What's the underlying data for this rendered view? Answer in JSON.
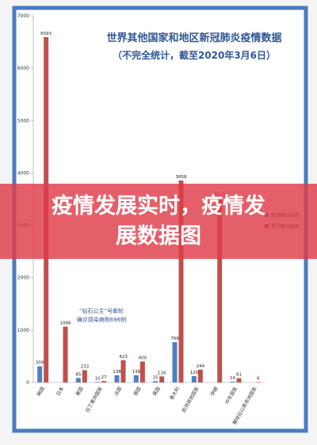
{
  "chart_data": {
    "type": "bar",
    "title": "世界其他国家和地区新冠肺炎疫情数据",
    "subtitle": "（不完全统计，截至2020年3月6日）",
    "annotation": "“钻石公主”号邮轮\n确诊感染病例696例",
    "categories": [
      "韩国",
      "日本",
      "美国",
      "拉丁美洲国家",
      "法国",
      "德国",
      "英国",
      "意大利",
      "欧洲其他国家",
      "伊朗",
      "中东国家",
      "撒哈拉以南非洲国家"
    ],
    "series": [
      {
        "name": "新增确诊病例",
        "color": "#4f7fc4",
        "values": [
          309,
          null,
          85,
          10,
          138,
          138,
          25,
          769,
          120,
          null,
          14,
          null
        ]
      },
      {
        "name": "累计确诊病例",
        "color": "#c0504d",
        "values": [
          6593,
          1066,
          233,
          27,
          423,
          400,
          116,
          3858,
          244,
          3513,
          81,
          6
        ]
      }
    ],
    "ylim": [
      0,
      7000
    ],
    "yticks": [
      0,
      1000,
      2000,
      3000,
      4000,
      5000,
      6000,
      7000
    ],
    "grid": false
  },
  "banner": {
    "text": "疫情发展实时，疫情发展数据图"
  }
}
